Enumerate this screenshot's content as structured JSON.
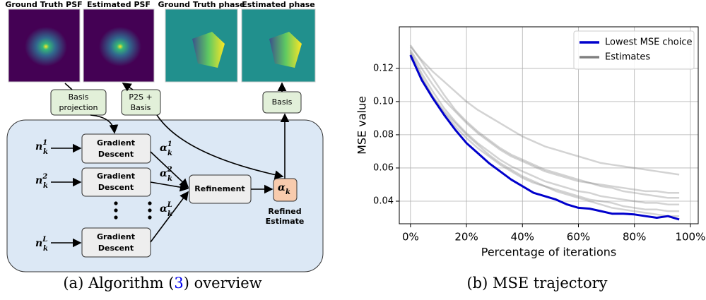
{
  "diagram": {
    "images": [
      "Ground Truth PSF",
      "Estimated PSF",
      "Ground Truth phase",
      "Estimated phase"
    ],
    "boxes": {
      "basis_projection": [
        "Basis",
        "projection"
      ],
      "p2s_basis": [
        "P2S +",
        "Basis"
      ],
      "basis": [
        "Basis"
      ],
      "gradient_descent": [
        [
          "Gradient",
          "Descent"
        ],
        [
          "Gradient",
          "Descent"
        ],
        [
          "Gradient",
          "Descent"
        ]
      ],
      "refinement": [
        "Refinement"
      ],
      "refined_estimate": [
        "Refined",
        "Estimate"
      ]
    },
    "math": {
      "inputs": [
        {
          "base": "n",
          "sub": "k",
          "sup": "1"
        },
        {
          "base": "n",
          "sub": "k",
          "sup": "2"
        },
        {
          "base": "n",
          "sub": "k",
          "sup": "L"
        }
      ],
      "outputs": [
        {
          "base": "α",
          "sub": "k",
          "sup": "1"
        },
        {
          "base": "α",
          "sub": "k",
          "sup": "2"
        },
        {
          "base": "α",
          "sub": "k",
          "sup": "L"
        }
      ],
      "result": {
        "base": "α",
        "sub": "k"
      }
    }
  },
  "captions": [
    {
      "prefix": "(a) Algorithm (",
      "ref": "3",
      "suffix": ") overview"
    },
    {
      "prefix": "(b) MSE trajectory"
    }
  ],
  "chart_data": {
    "type": "line",
    "xlabel": "Percentage of iterations",
    "ylabel": "MSE value",
    "x": [
      0,
      4,
      8,
      12,
      16,
      20,
      24,
      28,
      32,
      36,
      40,
      44,
      48,
      52,
      56,
      60,
      64,
      68,
      72,
      76,
      80,
      84,
      88,
      92,
      96
    ],
    "xlim": [
      -4,
      102.8
    ],
    "ylim": [
      0.0264,
      0.145
    ],
    "xticks": [
      {
        "value": 0,
        "label": "0%"
      },
      {
        "value": 20,
        "label": "20%"
      },
      {
        "value": 40,
        "label": "40%"
      },
      {
        "value": 60,
        "label": "60%"
      },
      {
        "value": 80,
        "label": "80%"
      },
      {
        "value": 100,
        "label": "100%"
      }
    ],
    "yticks": [
      0.04,
      0.06,
      0.08,
      {
        "value": 0.1,
        "label": "0.10"
      },
      0.12
    ],
    "grid": true,
    "legend": "upper right",
    "series": [
      {
        "name": "Lowest MSE choice",
        "color": "#0000cc",
        "values": [
          0.128,
          0.113,
          0.102,
          0.092,
          0.083,
          0.075,
          0.069,
          0.063,
          0.058,
          0.053,
          0.049,
          0.045,
          0.043,
          0.041,
          0.038,
          0.036,
          0.0355,
          0.034,
          0.0325,
          0.0325,
          0.032,
          0.031,
          0.03,
          0.031,
          0.029
        ]
      },
      {
        "name": "Estimates",
        "color": "#808080",
        "values": [
          [
            0.133,
            0.125,
            0.118,
            0.112,
            0.106,
            0.1,
            0.095,
            0.091,
            0.087,
            0.083,
            0.079,
            0.076,
            0.073,
            0.071,
            0.069,
            0.067,
            0.065,
            0.063,
            0.062,
            0.061,
            0.06,
            0.059,
            0.058,
            0.057,
            0.056
          ],
          [
            0.131,
            0.12,
            0.11,
            0.101,
            0.094,
            0.087,
            0.081,
            0.076,
            0.071,
            0.067,
            0.064,
            0.061,
            0.058,
            0.056,
            0.054,
            0.052,
            0.051,
            0.05,
            0.049,
            0.048,
            0.047,
            0.046,
            0.046,
            0.045,
            0.045
          ],
          [
            0.13,
            0.117,
            0.106,
            0.096,
            0.088,
            0.081,
            0.075,
            0.07,
            0.065,
            0.061,
            0.058,
            0.055,
            0.052,
            0.05,
            0.048,
            0.046,
            0.045,
            0.043,
            0.042,
            0.041,
            0.04,
            0.039,
            0.039,
            0.038,
            0.038
          ],
          [
            0.129,
            0.115,
            0.103,
            0.093,
            0.085,
            0.078,
            0.072,
            0.067,
            0.062,
            0.058,
            0.054,
            0.051,
            0.049,
            0.047,
            0.045,
            0.043,
            0.041,
            0.04,
            0.039,
            0.037,
            0.036,
            0.035,
            0.035,
            0.034,
            0.034
          ],
          [
            0.134,
            0.124,
            0.114,
            0.104,
            0.095,
            0.088,
            0.082,
            0.077,
            0.072,
            0.068,
            0.065,
            0.062,
            0.059,
            0.057,
            0.055,
            0.053,
            0.051,
            0.049,
            0.048,
            0.046,
            0.045,
            0.044,
            0.043,
            0.042,
            0.042
          ],
          [
            0.127,
            0.114,
            0.103,
            0.094,
            0.087,
            0.08,
            0.074,
            0.068,
            0.063,
            0.059,
            0.055,
            0.052,
            0.049,
            0.046,
            0.044,
            0.042,
            0.04,
            0.038,
            0.036,
            0.035,
            0.034,
            0.033,
            0.032,
            0.031,
            0.031
          ]
        ]
      }
    ]
  }
}
